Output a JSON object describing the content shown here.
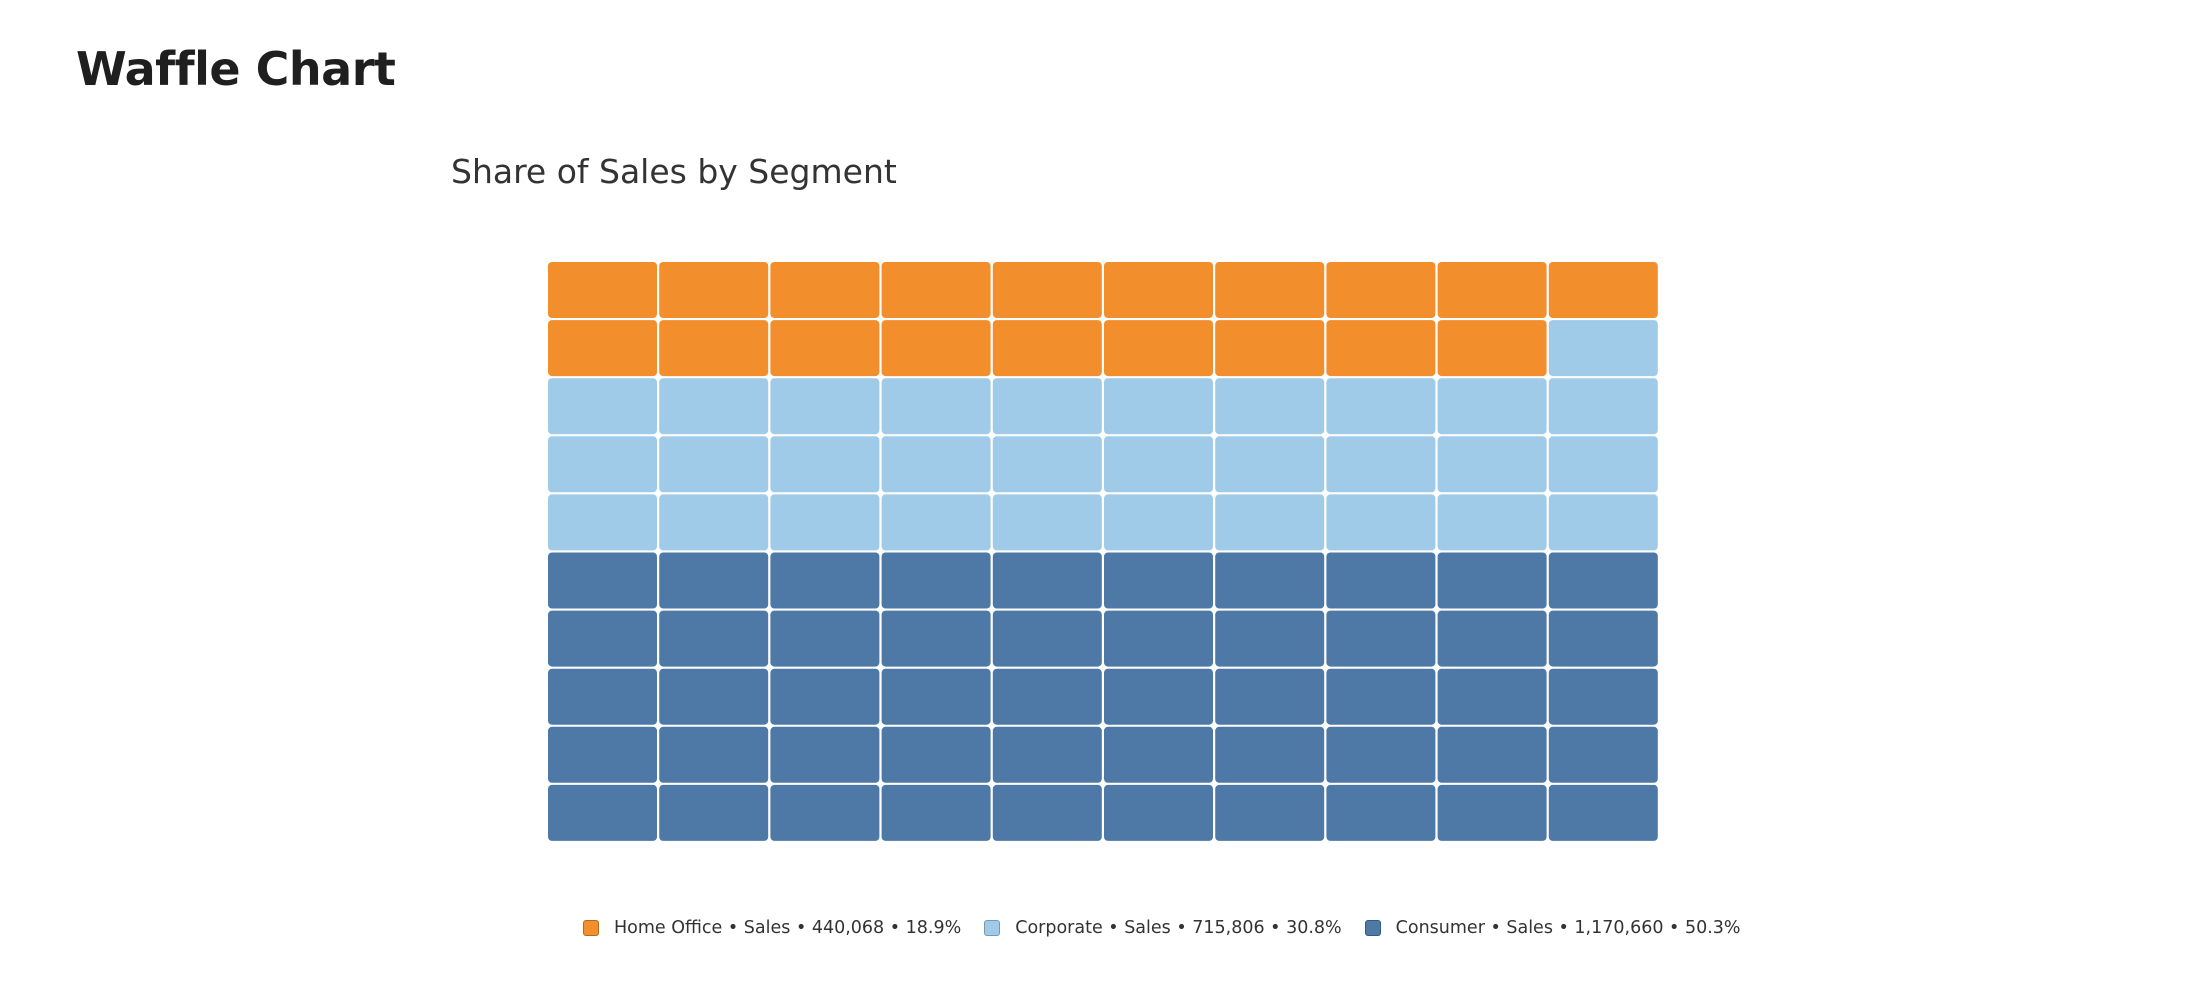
{
  "dashboard": {
    "title": "Waffle Chart"
  },
  "chart_data": {
    "type": "waffle",
    "title": "Share of Sales by Segment",
    "grid": {
      "rows": 10,
      "cols": 10
    },
    "separator": " • ",
    "series": [
      {
        "name": "Home Office",
        "measure": "Sales",
        "value": 440068,
        "value_label": "440,068",
        "percent": 18.9,
        "percent_label": "18.9%",
        "cells": 19,
        "color": "#F28E2B"
      },
      {
        "name": "Corporate",
        "measure": "Sales",
        "value": 715806,
        "value_label": "715,806",
        "percent": 30.8,
        "percent_label": "30.8%",
        "cells": 31,
        "color": "#A0CBE8"
      },
      {
        "name": "Consumer",
        "measure": "Sales",
        "value": 1170660,
        "value_label": "1,170,660",
        "percent": 50.3,
        "percent_label": "50.3%",
        "cells": 50,
        "color": "#4E79A7"
      }
    ]
  }
}
